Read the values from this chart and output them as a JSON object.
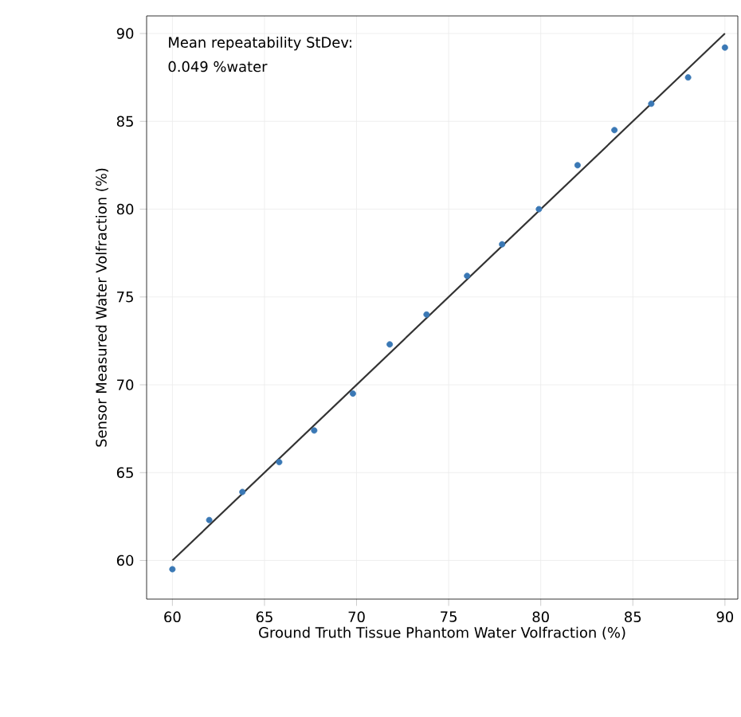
{
  "chart_data": {
    "type": "scatter",
    "xlabel": "Ground Truth Tissue Phantom Water Volfraction (%)",
    "ylabel": "Sensor Measured Water Volfraction (%)",
    "annotations": [
      "Mean repeatability StDev:",
      "0.049 %water"
    ],
    "series": [
      {
        "color": "#3a78b5",
        "marker": "circle",
        "x": [
          60,
          62,
          63.8,
          65.8,
          67.7,
          69.8,
          71.8,
          73.8,
          76,
          77.9,
          79.9,
          82,
          84,
          86,
          88,
          90
        ],
        "values": [
          59.5,
          62.3,
          63.9,
          65.6,
          67.4,
          69.5,
          72.3,
          74.0,
          76.2,
          78.0,
          80.0,
          82.5,
          84.5,
          86.0,
          87.5,
          89.2
        ]
      },
      {
        "type": "line",
        "color": "#333333",
        "x": [
          60,
          90
        ],
        "values": [
          60,
          90
        ]
      }
    ],
    "xlim": [
      58.6,
      90.7
    ],
    "ylim": [
      57.8,
      91.0
    ],
    "xticks": [
      60,
      65,
      70,
      75,
      80,
      85,
      90
    ],
    "yticks": [
      60,
      65,
      70,
      75,
      80,
      85,
      90
    ],
    "grid": true
  }
}
